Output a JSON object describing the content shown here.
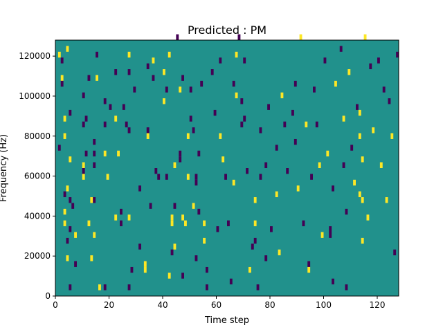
{
  "chart_data": {
    "type": "heatmap",
    "title": "Predicted : PM",
    "xlabel": "Time step",
    "ylabel": "Frequency (Hz)",
    "xlim": [
      0,
      128
    ],
    "ylim": [
      0,
      128000
    ],
    "xticks": [
      0,
      20,
      40,
      60,
      80,
      100,
      120
    ],
    "yticks": [
      0,
      20000,
      40000,
      60000,
      80000,
      100000,
      120000
    ],
    "grid": false,
    "n_bins": 44,
    "colors": {
      "background": "#21918c",
      "high": "#fde725",
      "low": "#440154"
    },
    "values_legend": {
      "high": 1,
      "background": 0,
      "low": -1
    },
    "cells": [
      [
        1,
        41,
        1
      ],
      [
        1,
        25,
        -1
      ],
      [
        2,
        40,
        -1
      ],
      [
        2,
        37,
        1
      ],
      [
        2,
        36,
        -1
      ],
      [
        3,
        30,
        1
      ],
      [
        3,
        27,
        1
      ],
      [
        3,
        17,
        -1
      ],
      [
        3,
        14,
        1
      ],
      [
        3,
        12,
        1
      ],
      [
        4,
        42,
        1
      ],
      [
        4,
        18,
        1
      ],
      [
        4,
        9,
        -1
      ],
      [
        4,
        6,
        1
      ],
      [
        5,
        31,
        -1
      ],
      [
        5,
        23,
        1
      ],
      [
        5,
        16,
        -1
      ],
      [
        5,
        11,
        -1
      ],
      [
        5,
        1,
        -1
      ],
      [
        6,
        15,
        -1
      ],
      [
        7,
        10,
        1
      ],
      [
        7,
        5,
        -1
      ],
      [
        10,
        34,
        -1
      ],
      [
        10,
        29,
        -1
      ],
      [
        10,
        22,
        1
      ],
      [
        10,
        21,
        -1
      ],
      [
        10,
        20,
        1
      ],
      [
        11,
        30,
        -1
      ],
      [
        11,
        24,
        -1
      ],
      [
        12,
        37,
        -1
      ],
      [
        12,
        12,
        1
      ],
      [
        13,
        16,
        1
      ],
      [
        13,
        6,
        1
      ],
      [
        14,
        26,
        -1
      ],
      [
        14,
        24,
        -1
      ],
      [
        14,
        22,
        -1
      ],
      [
        14,
        16,
        -1
      ],
      [
        14,
        10,
        1
      ],
      [
        15,
        41,
        -1
      ],
      [
        15,
        37,
        1
      ],
      [
        16,
        1,
        1
      ],
      [
        18,
        33,
        -1
      ],
      [
        18,
        29,
        -1
      ],
      [
        18,
        24,
        1
      ],
      [
        18,
        1,
        -1
      ],
      [
        19,
        20,
        1
      ],
      [
        20,
        32,
        -1
      ],
      [
        22,
        38,
        -1
      ],
      [
        22,
        30,
        1
      ],
      [
        22,
        13,
        1
      ],
      [
        23,
        24,
        1
      ],
      [
        24,
        14,
        -1
      ],
      [
        24,
        12,
        -1
      ],
      [
        25,
        32,
        -1
      ],
      [
        26,
        29,
        -1
      ],
      [
        27,
        41,
        1
      ],
      [
        27,
        38,
        -1
      ],
      [
        27,
        28,
        -1
      ],
      [
        27,
        13,
        1
      ],
      [
        27,
        1,
        -1
      ],
      [
        28,
        4,
        -1
      ],
      [
        29,
        35,
        -1
      ],
      [
        31,
        18,
        -1
      ],
      [
        31,
        8,
        -1
      ],
      [
        33,
        5,
        1
      ],
      [
        33,
        4,
        1
      ],
      [
        34,
        39,
        -1
      ],
      [
        34,
        28,
        -1
      ],
      [
        34,
        27,
        1
      ],
      [
        35,
        15,
        -1
      ],
      [
        36,
        40,
        1
      ],
      [
        36,
        37,
        -1
      ],
      [
        37,
        21,
        -1
      ],
      [
        38,
        20,
        -1
      ],
      [
        40,
        38,
        1
      ],
      [
        40,
        33,
        1
      ],
      [
        41,
        35,
        -1
      ],
      [
        41,
        20,
        -1
      ],
      [
        42,
        41,
        1
      ],
      [
        42,
        3,
        1
      ],
      [
        43,
        13,
        1
      ],
      [
        43,
        12,
        1
      ],
      [
        43,
        7,
        -1
      ],
      [
        44,
        22,
        1
      ],
      [
        44,
        15,
        -1
      ],
      [
        44,
        8,
        1
      ],
      [
        45,
        44,
        -1
      ],
      [
        46,
        35,
        1
      ],
      [
        46,
        24,
        -1
      ],
      [
        46,
        23,
        -1
      ],
      [
        47,
        37,
        -1
      ],
      [
        47,
        13,
        1
      ],
      [
        47,
        3,
        -1
      ],
      [
        48,
        12,
        1
      ],
      [
        49,
        27,
        1
      ],
      [
        49,
        20,
        1
      ],
      [
        50,
        35,
        -1
      ],
      [
        50,
        30,
        -1
      ],
      [
        51,
        28,
        -1
      ],
      [
        51,
        15,
        1
      ],
      [
        52,
        20,
        -1
      ],
      [
        52,
        19,
        -1
      ],
      [
        52,
        6,
        -1
      ],
      [
        53,
        24,
        -1
      ],
      [
        53,
        14,
        -1
      ],
      [
        54,
        36,
        -1
      ],
      [
        55,
        12,
        1
      ],
      [
        55,
        9,
        1
      ],
      [
        56,
        4,
        -1
      ],
      [
        56,
        1,
        -1
      ],
      [
        58,
        38,
        -1
      ],
      [
        59,
        31,
        -1
      ],
      [
        60,
        11,
        -1
      ],
      [
        61,
        40,
        -1
      ],
      [
        61,
        27,
        1
      ],
      [
        62,
        23,
        1
      ],
      [
        63,
        20,
        -1
      ],
      [
        64,
        12,
        -1
      ],
      [
        65,
        2,
        -1
      ],
      [
        66,
        36,
        -1
      ],
      [
        66,
        19,
        1
      ],
      [
        67,
        41,
        1
      ],
      [
        67,
        34,
        1
      ],
      [
        68,
        44,
        -1
      ],
      [
        69,
        33,
        -1
      ],
      [
        69,
        29,
        -1
      ],
      [
        70,
        40,
        -1
      ],
      [
        70,
        30,
        -1
      ],
      [
        71,
        21,
        -1
      ],
      [
        72,
        4,
        1
      ],
      [
        73,
        8,
        -1
      ],
      [
        74,
        16,
        1
      ],
      [
        74,
        12,
        1
      ],
      [
        74,
        9,
        -1
      ],
      [
        75,
        1,
        -1
      ],
      [
        76,
        28,
        -1
      ],
      [
        76,
        20,
        -1
      ],
      [
        78,
        22,
        -1
      ],
      [
        78,
        6,
        -1
      ],
      [
        79,
        32,
        -1
      ],
      [
        80,
        11,
        -1
      ],
      [
        82,
        25,
        -1
      ],
      [
        82,
        17,
        1
      ],
      [
        83,
        7,
        1
      ],
      [
        84,
        34,
        1
      ],
      [
        85,
        29,
        -1
      ],
      [
        86,
        21,
        -1
      ],
      [
        88,
        31,
        -1
      ],
      [
        89,
        36,
        -1
      ],
      [
        89,
        26,
        -1
      ],
      [
        90,
        18,
        1
      ],
      [
        91,
        44,
        1
      ],
      [
        92,
        12,
        -1
      ],
      [
        93,
        29,
        1
      ],
      [
        94,
        5,
        -1
      ],
      [
        94,
        4,
        1
      ],
      [
        95,
        20,
        -1
      ],
      [
        96,
        35,
        -1
      ],
      [
        97,
        29,
        -1
      ],
      [
        98,
        22,
        1
      ],
      [
        99,
        10,
        1
      ],
      [
        100,
        40,
        -1
      ],
      [
        101,
        24,
        1
      ],
      [
        102,
        11,
        -1
      ],
      [
        102,
        10,
        -1
      ],
      [
        103,
        18,
        -1
      ],
      [
        103,
        2,
        -1
      ],
      [
        104,
        36,
        1
      ],
      [
        106,
        42,
        -1
      ],
      [
        107,
        30,
        1
      ],
      [
        107,
        22,
        -1
      ],
      [
        108,
        14,
        -1
      ],
      [
        108,
        1,
        -1
      ],
      [
        109,
        38,
        1
      ],
      [
        110,
        25,
        -1
      ],
      [
        111,
        19,
        1
      ],
      [
        112,
        32,
        -1
      ],
      [
        113,
        31,
        1
      ],
      [
        113,
        27,
        1
      ],
      [
        113,
        17,
        1
      ],
      [
        114,
        23,
        1
      ],
      [
        114,
        16,
        1
      ],
      [
        114,
        9,
        1
      ],
      [
        115,
        44,
        1
      ],
      [
        116,
        13,
        1
      ],
      [
        117,
        39,
        -1
      ],
      [
        118,
        28,
        1
      ],
      [
        120,
        40,
        -1
      ],
      [
        121,
        22,
        1
      ],
      [
        122,
        35,
        -1
      ],
      [
        123,
        16,
        1
      ],
      [
        124,
        33,
        -1
      ],
      [
        125,
        27,
        1
      ],
      [
        126,
        7,
        -1
      ],
      [
        127,
        41,
        -1
      ]
    ]
  }
}
